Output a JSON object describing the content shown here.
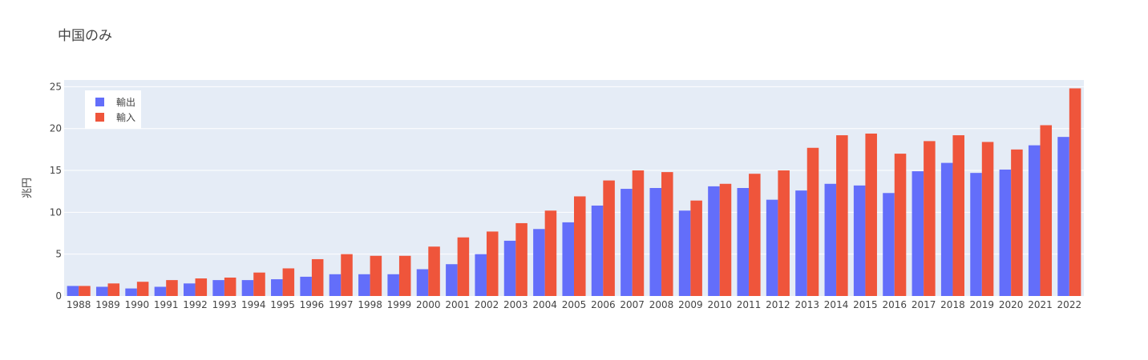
{
  "chart_data": {
    "type": "bar",
    "title": "中国のみ",
    "xlabel": "",
    "ylabel": "兆円",
    "ylim": [
      0,
      25.8
    ],
    "yticks": [
      0,
      5,
      10,
      15,
      20,
      25
    ],
    "grid": true,
    "legend_position": "top-left",
    "categories": [
      "1988",
      "1989",
      "1990",
      "1991",
      "1992",
      "1993",
      "1994",
      "1995",
      "1996",
      "1997",
      "1998",
      "1999",
      "2000",
      "2001",
      "2002",
      "2003",
      "2004",
      "2005",
      "2006",
      "2007",
      "2008",
      "2009",
      "2010",
      "2011",
      "2012",
      "2013",
      "2014",
      "2015",
      "2016",
      "2017",
      "2018",
      "2019",
      "2020",
      "2021",
      "2022"
    ],
    "series": [
      {
        "name": "輸出",
        "color": "#636efa",
        "values": [
          1.2,
          1.1,
          0.9,
          1.1,
          1.5,
          1.9,
          1.9,
          2.0,
          2.3,
          2.6,
          2.6,
          2.6,
          3.2,
          3.8,
          5.0,
          6.6,
          8.0,
          8.8,
          10.8,
          12.8,
          12.9,
          10.2,
          13.1,
          12.9,
          11.5,
          12.6,
          13.4,
          13.2,
          12.3,
          14.9,
          15.9,
          14.7,
          15.1,
          18.0,
          19.0
        ]
      },
      {
        "name": "輸入",
        "color": "#ef553b",
        "values": [
          1.2,
          1.5,
          1.7,
          1.9,
          2.1,
          2.2,
          2.8,
          3.3,
          4.4,
          5.0,
          4.8,
          4.8,
          5.9,
          7.0,
          7.7,
          8.7,
          10.2,
          11.9,
          13.8,
          15.0,
          14.8,
          11.4,
          13.4,
          14.6,
          15.0,
          17.7,
          19.2,
          19.4,
          17.0,
          18.5,
          19.2,
          18.4,
          17.5,
          20.4,
          24.8
        ]
      }
    ]
  }
}
